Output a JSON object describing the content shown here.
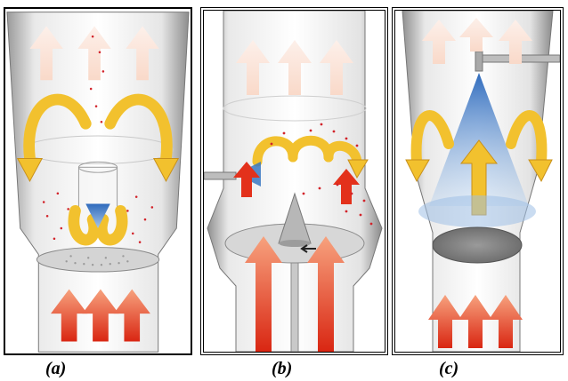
{
  "captions": {
    "a": "(a)",
    "b": "(b)",
    "c": "(c)"
  },
  "colors": {
    "airflow_faint": "#f6c9b4",
    "airflow_red": "#e3311b",
    "recirculation_yellow": "#f2c12e",
    "spray_blue": "#3a78c2",
    "droplet_red": "#d2232a",
    "bed_gray": "#8e8e8e"
  },
  "icons": [
    "up-arrow-icon",
    "curved-arrow-icon",
    "spray-cone-icon",
    "nozzle-icon",
    "cone-icon",
    "rotating-disc-icon"
  ]
}
